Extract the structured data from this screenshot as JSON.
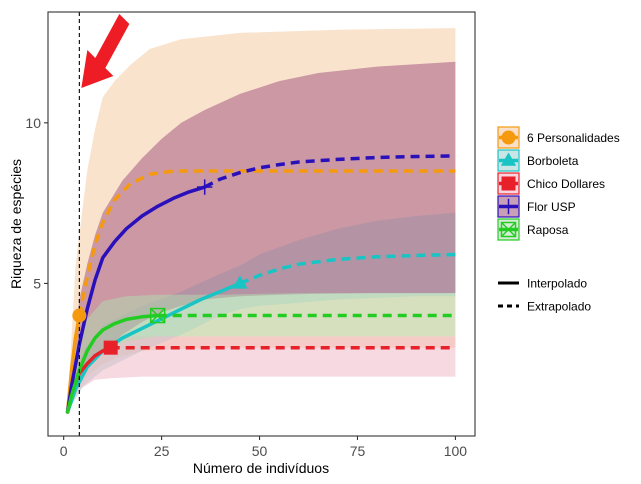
{
  "chart_data": {
    "type": "line",
    "title": "",
    "xlabel": "Número de indivíduos",
    "ylabel": "Riqueza de espécies",
    "xlim": [
      -4,
      105
    ],
    "ylim": [
      0.25,
      13.45
    ],
    "x_ticks": [
      0,
      25,
      50,
      75,
      100
    ],
    "x_tick_labels": [
      "0",
      "25",
      "50",
      "75",
      "100"
    ],
    "y_ticks": [
      5,
      10
    ],
    "y_tick_labels": [
      "5",
      "10"
    ],
    "grid": false,
    "reference_line": {
      "x": 4,
      "style": "dashed",
      "color": "#000000"
    },
    "annotation": {
      "type": "arrow",
      "color": "#ee1c24",
      "points_to_x": 4
    },
    "series": [
      {
        "name": "6 Personalidades",
        "color": "#f59a0f",
        "marker": "circle",
        "observed": {
          "x": 4,
          "y": 4
        },
        "interpolated": [
          [
            1,
            1
          ],
          [
            2,
            2.3
          ],
          [
            3,
            3.3
          ],
          [
            4,
            4
          ]
        ],
        "extrapolated": [
          [
            4,
            4
          ],
          [
            6,
            5.2
          ],
          [
            8,
            6.2
          ],
          [
            10,
            6.9
          ],
          [
            13,
            7.6
          ],
          [
            17,
            8.1
          ],
          [
            22,
            8.4
          ],
          [
            28,
            8.5
          ],
          [
            40,
            8.5
          ],
          [
            60,
            8.5
          ],
          [
            100,
            8.5
          ]
        ],
        "ci_color": "#f5c79b",
        "ci_upper": [
          [
            1,
            1.1
          ],
          [
            3,
            5.5
          ],
          [
            6,
            8.5
          ],
          [
            8,
            9.8
          ],
          [
            10,
            10.8
          ],
          [
            13,
            11.3
          ],
          [
            17,
            11.8
          ],
          [
            22,
            12.3
          ],
          [
            30,
            12.6
          ],
          [
            45,
            12.8
          ],
          [
            70,
            12.9
          ],
          [
            100,
            12.95
          ]
        ],
        "ci_lower": [
          [
            100,
            3.0
          ],
          [
            40,
            3.0
          ],
          [
            28,
            2.95
          ],
          [
            20,
            2.9
          ],
          [
            14,
            2.7
          ],
          [
            10,
            2.5
          ],
          [
            6,
            2.1
          ],
          [
            3,
            1.6
          ],
          [
            1,
            1.1
          ]
        ]
      },
      {
        "name": "Borboleta",
        "color": "#18c4c4",
        "marker": "triangle",
        "observed": {
          "x": 45,
          "y": 5
        },
        "interpolated": [
          [
            1,
            1
          ],
          [
            3,
            1.7
          ],
          [
            6,
            2.4
          ],
          [
            10,
            2.9
          ],
          [
            15,
            3.3
          ],
          [
            20,
            3.6
          ],
          [
            25,
            3.9
          ],
          [
            30,
            4.2
          ],
          [
            35,
            4.5
          ],
          [
            40,
            4.75
          ],
          [
            45,
            5
          ]
        ],
        "extrapolated": [
          [
            45,
            5
          ],
          [
            50,
            5.25
          ],
          [
            55,
            5.45
          ],
          [
            60,
            5.6
          ],
          [
            70,
            5.75
          ],
          [
            80,
            5.83
          ],
          [
            90,
            5.87
          ],
          [
            100,
            5.9
          ]
        ],
        "ci_color": "#9ed0d0",
        "ci_upper": [
          [
            1,
            1.1
          ],
          [
            5,
            2.9
          ],
          [
            10,
            3.7
          ],
          [
            20,
            4.3
          ],
          [
            30,
            4.75
          ],
          [
            40,
            5.3
          ],
          [
            45,
            5.55
          ],
          [
            50,
            5.9
          ],
          [
            60,
            6.35
          ],
          [
            70,
            6.7
          ],
          [
            80,
            6.95
          ],
          [
            90,
            7.1
          ],
          [
            100,
            7.2
          ]
        ],
        "ci_lower": [
          [
            100,
            4.6
          ],
          [
            90,
            4.6
          ],
          [
            80,
            4.55
          ],
          [
            70,
            4.5
          ],
          [
            60,
            4.4
          ],
          [
            50,
            4.3
          ],
          [
            45,
            4.2
          ],
          [
            40,
            4.0
          ],
          [
            30,
            3.4
          ],
          [
            20,
            2.9
          ],
          [
            10,
            2.3
          ],
          [
            5,
            1.8
          ],
          [
            1,
            1.0
          ]
        ]
      },
      {
        "name": "Chico Dollares",
        "color": "#e8202a",
        "marker": "square",
        "observed": {
          "x": 12,
          "y": 3
        },
        "interpolated": [
          [
            1,
            1
          ],
          [
            2,
            1.6
          ],
          [
            4,
            2.2
          ],
          [
            6,
            2.5
          ],
          [
            8,
            2.75
          ],
          [
            10,
            2.9
          ],
          [
            12,
            3
          ]
        ],
        "extrapolated": [
          [
            12,
            3
          ],
          [
            16,
            3
          ],
          [
            24,
            3
          ],
          [
            40,
            3
          ],
          [
            60,
            3
          ],
          [
            80,
            3
          ],
          [
            100,
            3
          ]
        ],
        "ci_color": "#f0b4c4",
        "ci_upper": [
          [
            1,
            1.1
          ],
          [
            4,
            2.6
          ],
          [
            8,
            3.2
          ],
          [
            12,
            3.3
          ],
          [
            20,
            3.35
          ],
          [
            40,
            3.35
          ],
          [
            100,
            3.35
          ]
        ],
        "ci_lower": [
          [
            100,
            2.1
          ],
          [
            40,
            2.1
          ],
          [
            20,
            2.1
          ],
          [
            12,
            2.05
          ],
          [
            8,
            2.0
          ],
          [
            4,
            1.7
          ],
          [
            1,
            1.0
          ]
        ]
      },
      {
        "name": "Flor USP",
        "color": "#2a10bb",
        "marker": "cross",
        "observed": {
          "x": 36,
          "y": 8
        },
        "interpolated": [
          [
            1,
            1
          ],
          [
            2,
            1.8
          ],
          [
            4,
            3.1
          ],
          [
            6,
            4.2
          ],
          [
            8,
            5.1
          ],
          [
            10,
            5.8
          ],
          [
            13,
            6.3
          ],
          [
            16,
            6.7
          ],
          [
            20,
            7.1
          ],
          [
            24,
            7.4
          ],
          [
            28,
            7.65
          ],
          [
            32,
            7.85
          ],
          [
            36,
            8
          ]
        ],
        "extrapolated": [
          [
            36,
            8
          ],
          [
            40,
            8.25
          ],
          [
            45,
            8.45
          ],
          [
            50,
            8.6
          ],
          [
            55,
            8.7
          ],
          [
            60,
            8.78
          ],
          [
            70,
            8.86
          ],
          [
            80,
            8.92
          ],
          [
            90,
            8.95
          ],
          [
            100,
            8.97
          ]
        ],
        "ci_color": "#9c4e7c",
        "ci_upper": [
          [
            1,
            1.1
          ],
          [
            4,
            4.5
          ],
          [
            6,
            5.6
          ],
          [
            8,
            6.5
          ],
          [
            10,
            7.2
          ],
          [
            15,
            8.2
          ],
          [
            20,
            8.9
          ],
          [
            25,
            9.5
          ],
          [
            30,
            10.0
          ],
          [
            36,
            10.4
          ],
          [
            45,
            10.9
          ],
          [
            55,
            11.3
          ],
          [
            65,
            11.55
          ],
          [
            80,
            11.75
          ],
          [
            100,
            11.9
          ]
        ],
        "ci_lower": [
          [
            100,
            4.7
          ],
          [
            80,
            4.7
          ],
          [
            65,
            4.68
          ],
          [
            55,
            4.65
          ],
          [
            45,
            4.6
          ],
          [
            36,
            4.5
          ],
          [
            30,
            4.3
          ],
          [
            25,
            4.1
          ],
          [
            20,
            3.8
          ],
          [
            15,
            3.4
          ],
          [
            10,
            2.9
          ],
          [
            6,
            2.4
          ],
          [
            4,
            2.0
          ],
          [
            1,
            1.0
          ]
        ]
      },
      {
        "name": "Raposa",
        "color": "#22cc22",
        "marker": "square-cross",
        "observed": {
          "x": 24,
          "y": 4
        },
        "interpolated": [
          [
            1,
            1
          ],
          [
            2,
            1.5
          ],
          [
            4,
            2.3
          ],
          [
            6,
            2.9
          ],
          [
            8,
            3.3
          ],
          [
            10,
            3.55
          ],
          [
            13,
            3.75
          ],
          [
            16,
            3.88
          ],
          [
            20,
            3.96
          ],
          [
            24,
            4
          ]
        ],
        "extrapolated": [
          [
            24,
            4
          ],
          [
            30,
            4
          ],
          [
            40,
            4
          ],
          [
            60,
            4
          ],
          [
            80,
            4
          ],
          [
            100,
            4
          ]
        ],
        "ci_color": "#b4ddb0",
        "ci_upper": [
          [
            1,
            1.1
          ],
          [
            3,
            2.9
          ],
          [
            6,
            3.9
          ],
          [
            10,
            4.45
          ],
          [
            16,
            4.6
          ],
          [
            24,
            4.65
          ],
          [
            40,
            4.65
          ],
          [
            60,
            4.7
          ],
          [
            100,
            4.7
          ]
        ],
        "ci_lower": [
          [
            100,
            3.35
          ],
          [
            60,
            3.35
          ],
          [
            40,
            3.35
          ],
          [
            24,
            3.35
          ],
          [
            16,
            3.2
          ],
          [
            10,
            2.9
          ],
          [
            6,
            2.5
          ],
          [
            3,
            1.8
          ],
          [
            1,
            1.0
          ]
        ]
      }
    ],
    "legend": {
      "placement": "right",
      "series_labels": [
        "6 Personalidades",
        "Borboleta",
        "Chico Dollares",
        "Flor USP",
        "Raposa"
      ],
      "linetype_labels": [
        "Interpolado",
        "Extrapolado"
      ]
    }
  }
}
